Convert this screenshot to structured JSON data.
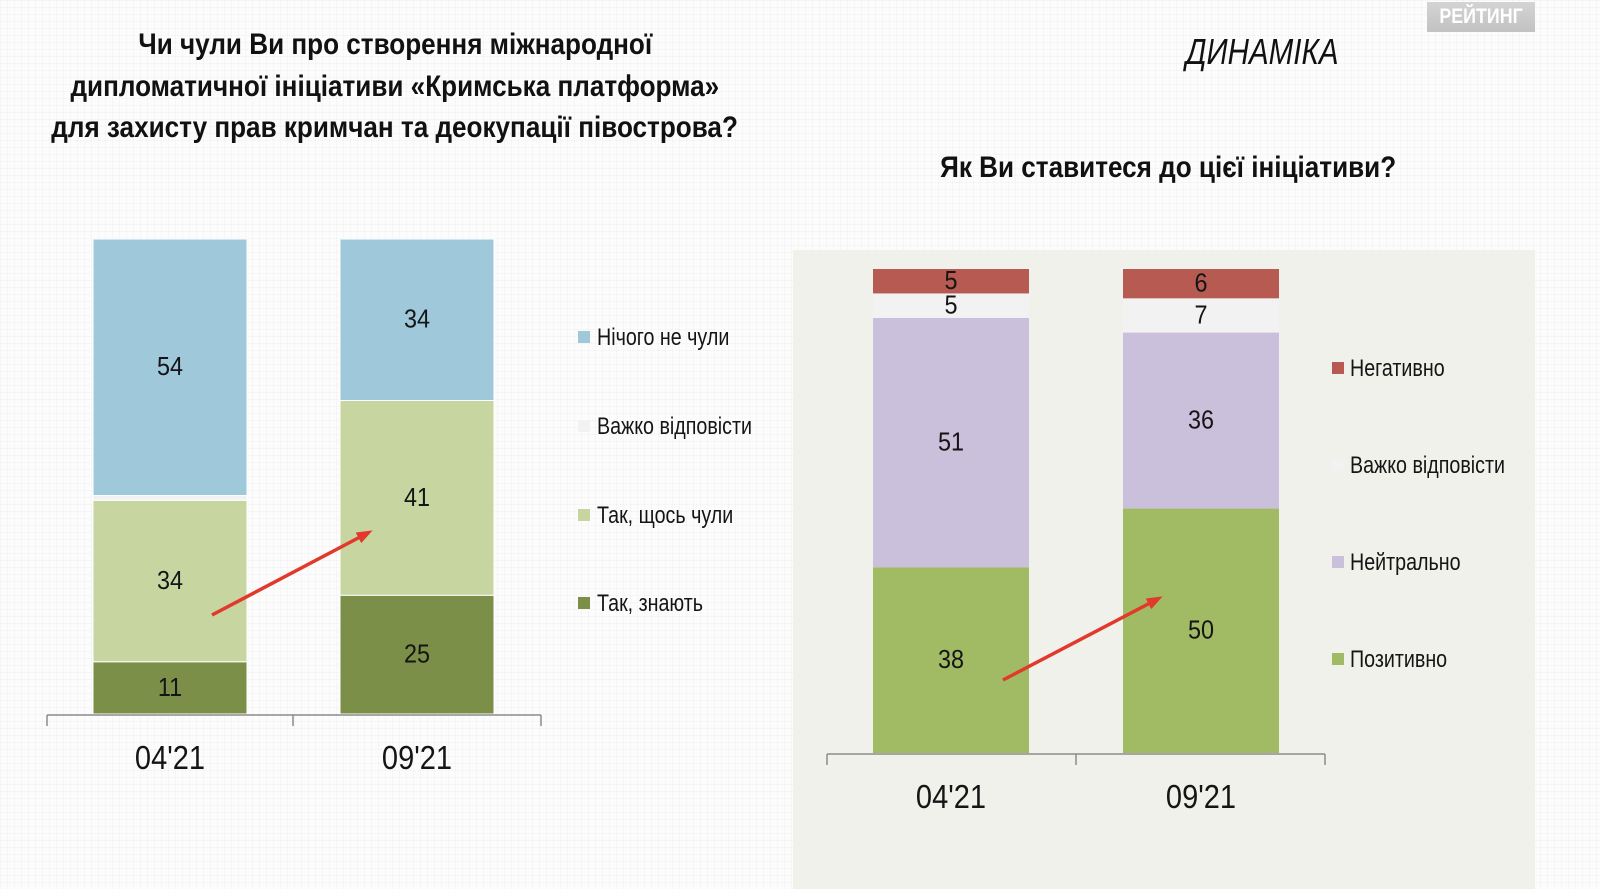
{
  "logo": {
    "text": "РЕЙТИНГ"
  },
  "section_label": "ДИНАМІКА",
  "chart_data": [
    {
      "type": "bar",
      "stacked": true,
      "title_lines": [
        "Чи чули Ви про створення міжнародної",
        "дипломатичної ініціативи «Кримська платформа»",
        "для захисту прав кримчан та деокупації півострова?"
      ],
      "categories": [
        "04'21",
        "09'21"
      ],
      "series": [
        {
          "name": "Нічого не чули",
          "color": "#9FC9DB",
          "values": [
            54,
            34
          ]
        },
        {
          "name": "Важко відповісти",
          "color": "#F2F2F2",
          "values": [
            1,
            0
          ]
        },
        {
          "name": "Так, щось чули",
          "color": "#C7D6A1",
          "values": [
            34,
            41
          ]
        },
        {
          "name": "Так, знають",
          "color": "#7C8F48",
          "values": [
            11,
            25
          ]
        }
      ],
      "xlabel": "",
      "ylabel": "",
      "ylim": [
        0,
        100
      ],
      "grid": false,
      "legend": "right"
    },
    {
      "type": "bar",
      "stacked": true,
      "title": "Як Ви ставитеся до цієї ініціативи?",
      "categories": [
        "04'21",
        "09'21"
      ],
      "series": [
        {
          "name": "Негативно",
          "color": "#B65A52",
          "values": [
            5,
            6
          ]
        },
        {
          "name": "Важко відповісти",
          "color": "#F2F2F2",
          "values": [
            5,
            7
          ]
        },
        {
          "name": "Нейтрально",
          "color": "#CBC0DB",
          "values": [
            51,
            36
          ]
        },
        {
          "name": "Позитивно",
          "color": "#A0BB64",
          "values": [
            38,
            50
          ]
        }
      ],
      "xlabel": "",
      "ylabel": "",
      "ylim": [
        0,
        100
      ],
      "grid": false,
      "legend": "right"
    }
  ]
}
